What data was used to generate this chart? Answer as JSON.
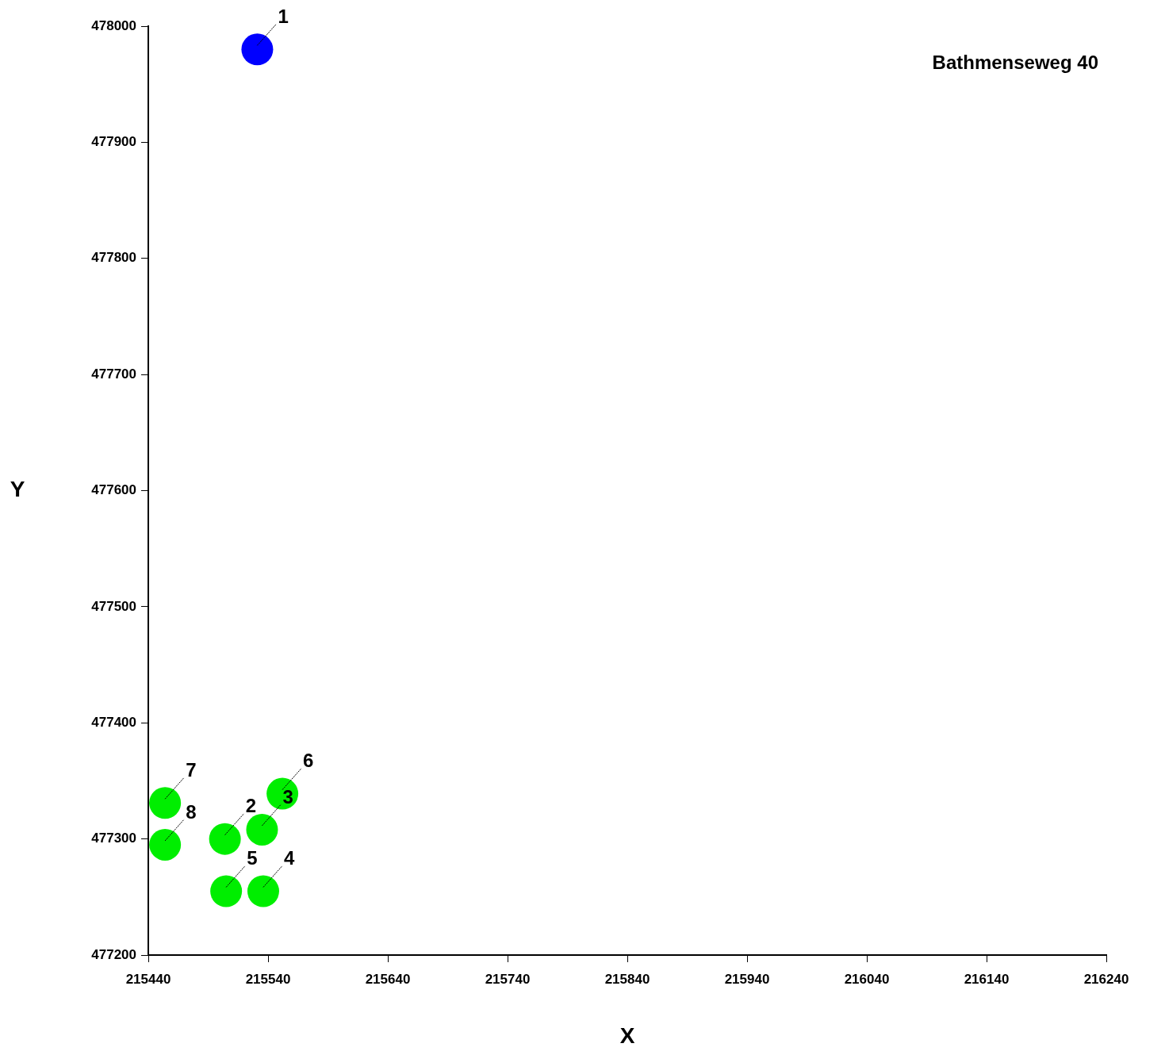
{
  "chart_data": {
    "type": "scatter",
    "title": "Bathmenseweg 40",
    "xlabel": "X",
    "ylabel": "Y",
    "series": [
      {
        "x": [
          215531
        ],
        "values": [
          477980
        ],
        "color": "#0000ff"
      },
      {
        "x": [
          215504,
          215535,
          215536,
          215505,
          215552,
          215454,
          215454
        ],
        "values": [
          477300,
          477308,
          477255,
          477255,
          477339,
          477331,
          477295
        ],
        "color": "#00ee00"
      }
    ],
    "xlim": [
      215440,
      216240
    ],
    "xticks": [
      215440,
      215540,
      215640,
      215740,
      215840,
      215940,
      216040,
      216140,
      216240
    ],
    "ylim": [
      477200,
      478000
    ],
    "yticks": [
      477200,
      477300,
      477400,
      477500,
      477600,
      477700,
      477800,
      477900,
      478000
    ],
    "marker": "circle",
    "grid": false,
    "legend": false,
    "annotations": [
      {
        "text": "1",
        "x": 215531,
        "y": 477980
      },
      {
        "text": "2",
        "x": 215504,
        "y": 477300
      },
      {
        "text": "3",
        "x": 215535,
        "y": 477308
      },
      {
        "text": "4",
        "x": 215536,
        "y": 477255
      },
      {
        "text": "5",
        "x": 215505,
        "y": 477255
      },
      {
        "text": "6",
        "x": 215552,
        "y": 477339
      },
      {
        "text": "7",
        "x": 215454,
        "y": 477331
      },
      {
        "text": "8",
        "x": 215454,
        "y": 477295
      }
    ]
  }
}
